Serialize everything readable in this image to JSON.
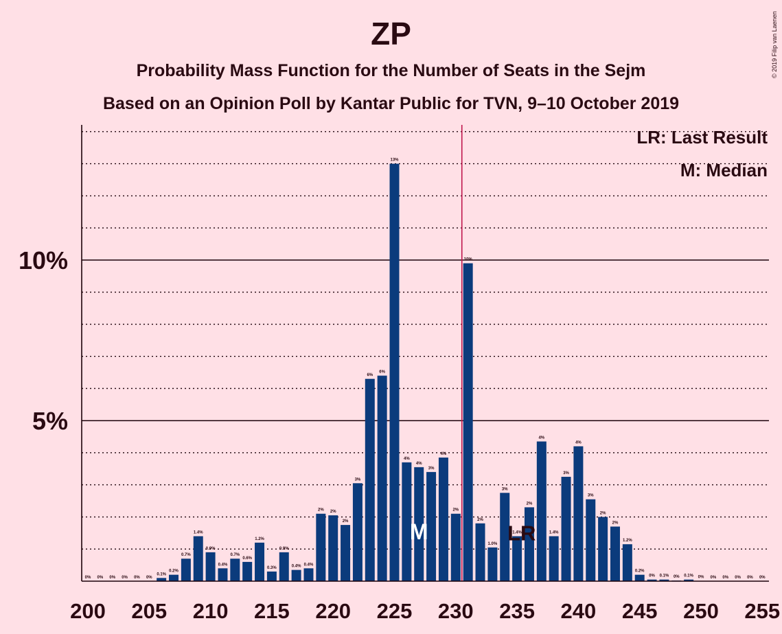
{
  "chart_data": {
    "type": "bar",
    "title": "ZP",
    "subtitle": "Probability Mass Function for the Number of Seats in the Sejm",
    "subtitle2": "Based on an Opinion Poll by Kantar Public for TVN, 9–10 October 2019",
    "copyright": "© 2019 Filip van Laenen",
    "legend": {
      "last_result": "LR: Last Result",
      "median": "M: Median"
    },
    "x": [
      200,
      201,
      202,
      203,
      204,
      205,
      206,
      207,
      208,
      209,
      210,
      211,
      212,
      213,
      214,
      215,
      216,
      217,
      218,
      219,
      220,
      221,
      222,
      223,
      224,
      225,
      226,
      227,
      228,
      229,
      230,
      231,
      232,
      233,
      234,
      235,
      236,
      237,
      238,
      239,
      240,
      241,
      242,
      243,
      244,
      245,
      246,
      247,
      248,
      249,
      250,
      251,
      252,
      253,
      254,
      255
    ],
    "values": [
      0,
      0,
      0,
      0,
      0,
      0,
      0.1,
      0.2,
      0.7,
      1.4,
      0.9,
      0.4,
      0.7,
      0.6,
      1.2,
      0.3,
      0.9,
      0.35,
      0.4,
      2.1,
      2.05,
      1.75,
      3.05,
      6.3,
      6.4,
      13.0,
      3.7,
      3.55,
      3.4,
      3.85,
      2.1,
      9.9,
      1.8,
      1.05,
      2.75,
      1.4,
      2.3,
      4.35,
      1.4,
      3.25,
      4.2,
      2.55,
      2.0,
      1.7,
      1.15,
      0.2,
      0.05,
      0.05,
      0.02,
      0.05,
      0.01,
      0,
      0,
      0,
      0,
      0
    ],
    "data_labels": [
      "0%",
      "0%",
      "0%",
      "0%",
      "0%",
      "0%",
      "0.1%",
      "0.2%",
      "0.7%",
      "1.4%",
      "0.9%",
      "0.4%",
      "0.7%",
      "0.6%",
      "1.2%",
      "0.3%",
      "0.9%",
      "0.4%",
      "0.4%",
      "2%",
      "2%",
      "2%",
      "3%",
      "6%",
      "6%",
      "13%",
      "4%",
      "4%",
      "3%",
      "4%",
      "2%",
      "10%",
      "2%",
      "1.0%",
      "3%",
      "1.4%",
      "2%",
      "4%",
      "1.4%",
      "3%",
      "4%",
      "3%",
      "2%",
      "2%",
      "1.2%",
      "0.2%",
      "0%",
      "0.1%",
      "0%",
      "0.1%",
      "0%",
      "0%",
      "0%",
      "0%",
      "0%",
      "0%"
    ],
    "x_ticks": [
      200,
      205,
      210,
      215,
      220,
      225,
      230,
      235,
      240,
      245,
      250,
      255
    ],
    "y_ticks": [
      {
        "value": 5,
        "label": "5%"
      },
      {
        "value": 10,
        "label": "10%"
      }
    ],
    "ylim": [
      0,
      14.2
    ],
    "xlim": [
      200,
      255
    ],
    "majority_line": 230.5,
    "last_result": {
      "x": 235,
      "label": "LR"
    },
    "median": {
      "x": 227,
      "label": "M"
    },
    "colors": {
      "bar": "#0b3b7c",
      "majority": "#c0164d",
      "axis": "#1a0008",
      "background": "#ffe0e6"
    }
  }
}
